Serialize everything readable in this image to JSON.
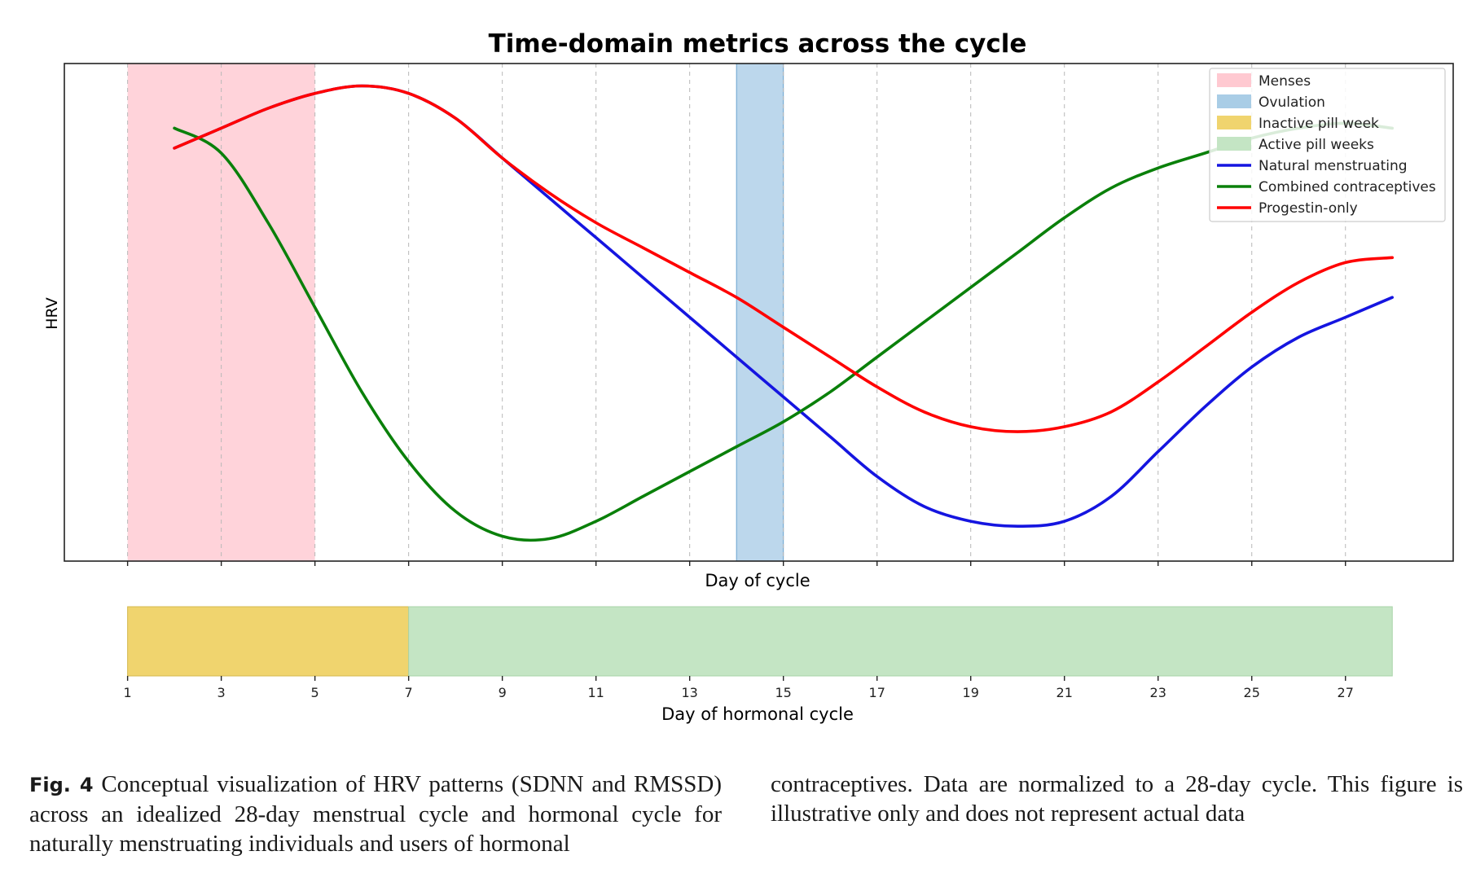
{
  "chart_data": [
    {
      "type": "line",
      "title": "Time-domain metrics across the cycle",
      "xlabel": "Day of cycle",
      "ylabel": "HRV",
      "xlim": [
        -0.35,
        29.3
      ],
      "ylim": [
        0,
        1
      ],
      "grid": "vertical dashed lines at odd days",
      "legend_position": "top-right",
      "shaded_regions": [
        {
          "name": "Menses",
          "start": 1,
          "end": 5,
          "color": "#ffc0cb"
        },
        {
          "name": "Ovulation",
          "start": 14,
          "end": 15,
          "color": "#8fbde0"
        }
      ],
      "legend": [
        {
          "label": "Menses",
          "kind": "patch",
          "color": "#ffc9d1"
        },
        {
          "label": "Ovulation",
          "kind": "patch",
          "color": "#a9cde6"
        },
        {
          "label": "Inactive pill week",
          "kind": "patch",
          "color": "#f0d46e"
        },
        {
          "label": "Active pill weeks",
          "kind": "patch",
          "color": "#c4e5c4"
        },
        {
          "label": "Natural menstruating",
          "kind": "line",
          "color": "#1515e0"
        },
        {
          "label": "Combined contraceptives",
          "kind": "line",
          "color": "#0a800a"
        },
        {
          "label": "Progestin-only",
          "kind": "line",
          "color": "#ff0000"
        }
      ],
      "series": [
        {
          "name": "Natural menstruating",
          "color": "#1515e0",
          "points": [
            [
              2,
              0.83
            ],
            [
              3,
              0.87
            ],
            [
              4,
              0.91
            ],
            [
              5,
              0.94
            ],
            [
              6,
              0.955
            ],
            [
              7,
              0.94
            ],
            [
              8,
              0.89
            ],
            [
              9,
              0.81
            ],
            [
              10,
              0.73
            ],
            [
              11,
              0.65
            ],
            [
              12,
              0.57
            ],
            [
              13,
              0.49
            ],
            [
              14,
              0.41
            ],
            [
              15,
              0.33
            ],
            [
              16,
              0.25
            ],
            [
              17,
              0.17
            ],
            [
              18,
              0.11
            ],
            [
              19,
              0.08
            ],
            [
              20,
              0.07
            ],
            [
              21,
              0.08
            ],
            [
              22,
              0.13
            ],
            [
              23,
              0.22
            ],
            [
              24,
              0.31
            ],
            [
              25,
              0.39
            ],
            [
              26,
              0.45
            ],
            [
              27,
              0.49
            ],
            [
              28,
              0.53
            ]
          ]
        },
        {
          "name": "Combined contraceptives",
          "color": "#0a800a",
          "points": [
            [
              2,
              0.87
            ],
            [
              3,
              0.82
            ],
            [
              4,
              0.68
            ],
            [
              5,
              0.51
            ],
            [
              6,
              0.34
            ],
            [
              7,
              0.2
            ],
            [
              8,
              0.1
            ],
            [
              9,
              0.05
            ],
            [
              10,
              0.045
            ],
            [
              11,
              0.08
            ],
            [
              12,
              0.13
            ],
            [
              13,
              0.18
            ],
            [
              14,
              0.23
            ],
            [
              15,
              0.28
            ],
            [
              16,
              0.34
            ],
            [
              17,
              0.41
            ],
            [
              18,
              0.48
            ],
            [
              19,
              0.55
            ],
            [
              20,
              0.62
            ],
            [
              21,
              0.69
            ],
            [
              22,
              0.75
            ],
            [
              23,
              0.79
            ],
            [
              24,
              0.82
            ],
            [
              25,
              0.85
            ],
            [
              26,
              0.87
            ],
            [
              27,
              0.88
            ],
            [
              28,
              0.87
            ]
          ]
        },
        {
          "name": "Progestin-only",
          "color": "#ff0000",
          "points": [
            [
              2,
              0.83
            ],
            [
              3,
              0.87
            ],
            [
              4,
              0.91
            ],
            [
              5,
              0.94
            ],
            [
              6,
              0.955
            ],
            [
              7,
              0.94
            ],
            [
              8,
              0.89
            ],
            [
              9,
              0.81
            ],
            [
              10,
              0.74
            ],
            [
              11,
              0.68
            ],
            [
              12,
              0.63
            ],
            [
              13,
              0.58
            ],
            [
              14,
              0.53
            ],
            [
              15,
              0.47
            ],
            [
              16,
              0.41
            ],
            [
              17,
              0.35
            ],
            [
              18,
              0.3
            ],
            [
              19,
              0.27
            ],
            [
              20,
              0.26
            ],
            [
              21,
              0.27
            ],
            [
              22,
              0.3
            ],
            [
              23,
              0.36
            ],
            [
              24,
              0.43
            ],
            [
              25,
              0.5
            ],
            [
              26,
              0.56
            ],
            [
              27,
              0.6
            ],
            [
              28,
              0.61
            ]
          ]
        }
      ]
    },
    {
      "type": "bar",
      "title": "",
      "xlabel": "Day of hormonal cycle",
      "ylabel": "",
      "xlim": [
        -0.35,
        29.3
      ],
      "tick_labels": [
        "1",
        "3",
        "5",
        "7",
        "9",
        "11",
        "13",
        "15",
        "17",
        "19",
        "21",
        "23",
        "25",
        "27"
      ],
      "segments": [
        {
          "name": "Inactive pill week",
          "start": 1,
          "end": 7,
          "color": "#f0d46e"
        },
        {
          "name": "Active pill weeks",
          "start": 7,
          "end": 28,
          "color": "#c4e5c4"
        }
      ]
    }
  ],
  "caption": {
    "label": "Fig. 4",
    "left_text": "Conceptual visualization of HRV patterns (SDNN and RMSSD) across an idealized 28-day menstrual cycle and hormonal cycle for naturally menstruating individuals and users of hormonal",
    "right_text": "contraceptives. Data are normalized to a 28-day cycle. This figure is illustrative only and does not represent actual data"
  }
}
